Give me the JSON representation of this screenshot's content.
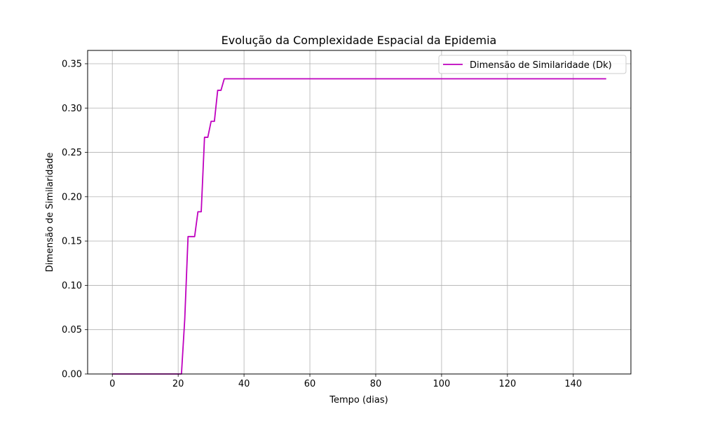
{
  "chart_data": {
    "type": "line",
    "title": "Evolução da Complexidade Espacial da Epidemia",
    "xlabel": "Tempo (dias)",
    "ylabel": "Dimensão de Similaridade",
    "xlim": [
      -7.5,
      157.5
    ],
    "ylim": [
      0,
      0.365
    ],
    "xticks": [
      0,
      20,
      40,
      60,
      80,
      100,
      120,
      140
    ],
    "xtick_labels": [
      "0",
      "20",
      "40",
      "60",
      "80",
      "100",
      "120",
      "140"
    ],
    "yticks": [
      0,
      0.05,
      0.1,
      0.15,
      0.2,
      0.25,
      0.3,
      0.35
    ],
    "ytick_labels": [
      "0.00",
      "0.05",
      "0.10",
      "0.15",
      "0.20",
      "0.25",
      "0.30",
      "0.35"
    ],
    "grid": true,
    "legend_position": "top-right",
    "series": [
      {
        "name": "Dimensão de Similaridade (Dk)",
        "color": "#bf00bf",
        "x": [
          0,
          21,
          22,
          23,
          24,
          25,
          26,
          27,
          28,
          29,
          30,
          31,
          32,
          33,
          34,
          35,
          150
        ],
        "y": [
          0,
          0,
          0.062,
          0.155,
          0.155,
          0.155,
          0.183,
          0.183,
          0.267,
          0.267,
          0.285,
          0.285,
          0.32,
          0.32,
          0.333,
          0.333,
          0.333
        ]
      }
    ]
  }
}
